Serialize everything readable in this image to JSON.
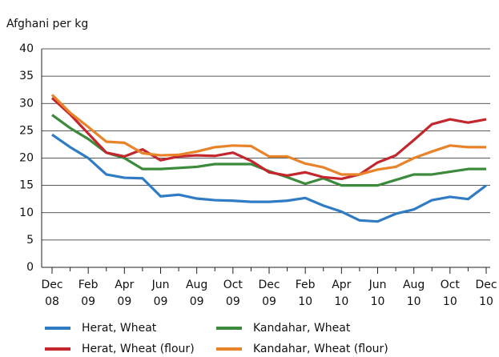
{
  "chart_data": {
    "type": "line",
    "y_label": "Afghani per kg",
    "categories": [
      [
        "Dec",
        "08"
      ],
      null,
      [
        "Feb",
        "09"
      ],
      null,
      [
        "Apr",
        "09"
      ],
      null,
      [
        "Jun",
        "09"
      ],
      null,
      [
        "Aug",
        "09"
      ],
      null,
      [
        "Oct",
        "09"
      ],
      null,
      [
        "Dec",
        "09"
      ],
      null,
      [
        "Feb",
        "10"
      ],
      null,
      [
        "Apr",
        "10"
      ],
      null,
      [
        "Jun",
        "10"
      ],
      null,
      [
        "Aug",
        "10"
      ],
      null,
      [
        "Oct",
        "10"
      ],
      null,
      [
        "Dec",
        "10"
      ]
    ],
    "series": [
      {
        "name": "Herat, Wheat",
        "color": "#2f7cc4",
        "values": [
          24.3,
          22,
          20,
          17,
          16.4,
          16.3,
          13,
          13.3,
          12.6,
          12.3,
          12.2,
          12,
          12,
          12.2,
          12.7,
          11.3,
          10.2,
          8.6,
          8.4,
          9.8,
          10.6,
          12.3,
          12.9,
          12.5,
          15
        ]
      },
      {
        "name": "Kandahar, Wheat",
        "color": "#3c8a3c",
        "values": [
          27.9,
          25.5,
          23.5,
          21,
          20,
          18,
          18,
          18.2,
          18.4,
          18.9,
          18.9,
          18.9,
          17.6,
          16.5,
          15.3,
          16.3,
          15,
          15,
          15,
          16,
          17,
          17,
          17.5,
          18,
          18
        ]
      },
      {
        "name": "Herat, Wheat (flour)",
        "color": "#c4262e",
        "values": [
          31,
          28,
          24.5,
          21,
          20.3,
          21.6,
          19.6,
          20.3,
          20.5,
          20.4,
          21,
          19.5,
          17.4,
          16.8,
          17.4,
          16.5,
          16.2,
          17,
          19.2,
          20.5,
          23.3,
          26.2,
          27.1,
          26.5,
          27.1
        ]
      },
      {
        "name": "Kandahar, Wheat (flour)",
        "color": "#e8832a",
        "values": [
          31.6,
          28.3,
          25.7,
          23,
          22.8,
          20.9,
          20.5,
          20.6,
          21.2,
          22,
          22.3,
          22.2,
          20.3,
          20.3,
          19,
          18.3,
          17,
          17,
          17.9,
          18.4,
          20,
          21.2,
          22.3,
          22,
          22
        ]
      }
    ],
    "ylim": [
      0,
      40
    ],
    "yticks": [
      0,
      5,
      10,
      15,
      20,
      25,
      30,
      35,
      40
    ],
    "grid": true
  }
}
